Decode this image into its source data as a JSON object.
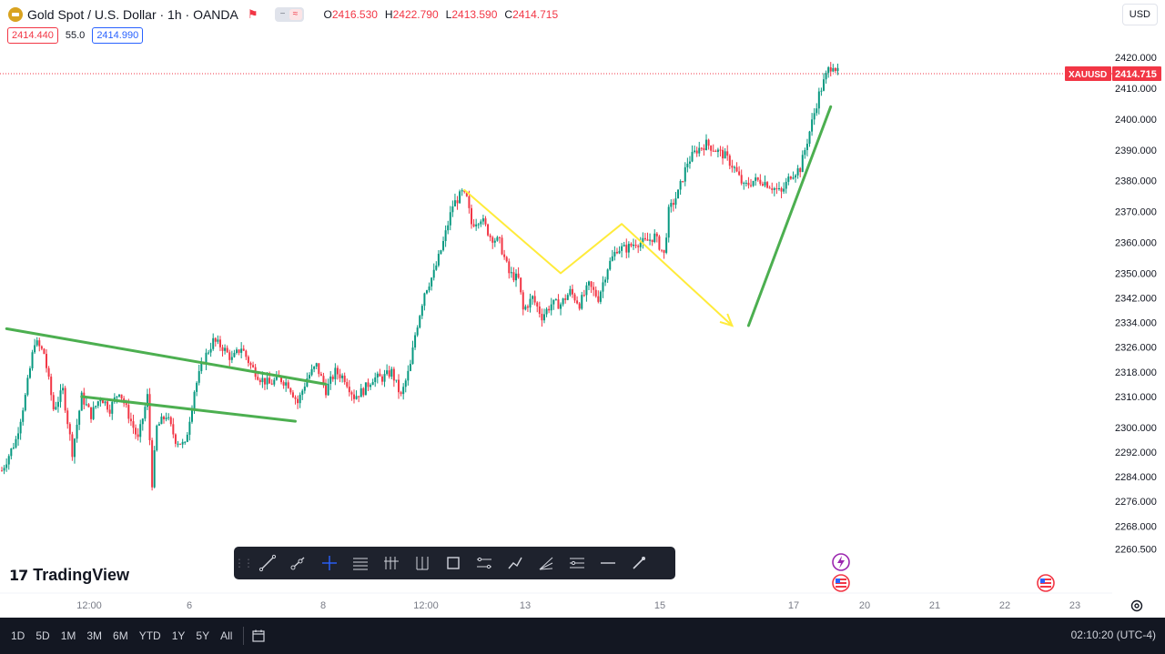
{
  "header": {
    "title": "Gold Spot / U.S. Dollar · 1h · OANDA",
    "ohlc": {
      "o_label": "O",
      "o": "2416.530",
      "h_label": "H",
      "h": "2422.790",
      "l_label": "L",
      "l": "2413.590",
      "c_label": "C",
      "c": "2414.715"
    }
  },
  "quote": {
    "sell": "2414.440",
    "spread": "55.0",
    "buy": "2414.990"
  },
  "currency_button": "USD",
  "price_axis": {
    "ticks": [
      "2420.000",
      "2410.000",
      "2400.000",
      "2390.000",
      "2380.000",
      "2370.000",
      "2360.000",
      "2350.000",
      "2342.000",
      "2334.000",
      "2326.000",
      "2318.000",
      "2310.000",
      "2300.000",
      "2292.000",
      "2284.000",
      "2276.000",
      "2268.000",
      "2260.500"
    ],
    "symbol_label": "XAUUSD",
    "last_price": "2414.715"
  },
  "time_axis": {
    "ticks": [
      "12:00",
      "6",
      "8",
      "12:00",
      "13",
      "15",
      "17",
      "20",
      "21",
      "22",
      "23"
    ]
  },
  "logo": "TradingView",
  "range_buttons": [
    "1D",
    "5D",
    "1M",
    "3M",
    "6M",
    "YTD",
    "1Y",
    "5Y",
    "All"
  ],
  "clock": "02:10:20 (UTC-4)",
  "colors": {
    "up": "#089981",
    "down": "#f23645",
    "green_line": "#4caf50",
    "yellow_line": "#ffeb3b",
    "last_price": "#f23645",
    "toolbar_bg": "#1e222d"
  },
  "toolbar_icons": [
    "trend-line-icon",
    "ray-icon",
    "crosshair-icon",
    "horizontal-lines-icon",
    "fib-levels-icon",
    "pitchfork-icon",
    "rectangle-icon",
    "parallel-channel-icon",
    "path-icon",
    "fib-fan-icon",
    "regression-icon",
    "horizontal-line-icon",
    "brush-icon"
  ],
  "chart_data": {
    "type": "candlestick",
    "symbol": "XAUUSD",
    "interval": "1h",
    "ylim": [
      2256,
      2428
    ],
    "last": 2414.715,
    "path_anchors": [
      [
        0,
        2286
      ],
      [
        6,
        2296
      ],
      [
        10,
        2310
      ],
      [
        14,
        2328
      ],
      [
        18,
        2324
      ],
      [
        22,
        2306
      ],
      [
        26,
        2312
      ],
      [
        30,
        2292
      ],
      [
        34,
        2310
      ],
      [
        38,
        2304
      ],
      [
        42,
        2310
      ],
      [
        46,
        2306
      ],
      [
        50,
        2312
      ],
      [
        54,
        2304
      ],
      [
        58,
        2296
      ],
      [
        62,
        2310
      ],
      [
        64,
        2282
      ],
      [
        66,
        2300
      ],
      [
        70,
        2304
      ],
      [
        74,
        2296
      ],
      [
        78,
        2294
      ],
      [
        82,
        2312
      ],
      [
        86,
        2322
      ],
      [
        90,
        2328
      ],
      [
        94,
        2326
      ],
      [
        98,
        2322
      ],
      [
        102,
        2326
      ],
      [
        106,
        2320
      ],
      [
        110,
        2316
      ],
      [
        114,
        2314
      ],
      [
        118,
        2316
      ],
      [
        122,
        2314
      ],
      [
        126,
        2308
      ],
      [
        130,
        2316
      ],
      [
        134,
        2320
      ],
      [
        138,
        2312
      ],
      [
        142,
        2318
      ],
      [
        146,
        2316
      ],
      [
        150,
        2310
      ],
      [
        154,
        2312
      ],
      [
        158,
        2316
      ],
      [
        162,
        2316
      ],
      [
        166,
        2318
      ],
      [
        170,
        2310
      ],
      [
        174,
        2320
      ],
      [
        176,
        2330
      ],
      [
        180,
        2344
      ],
      [
        184,
        2350
      ],
      [
        188,
        2360
      ],
      [
        192,
        2372
      ],
      [
        196,
        2376
      ],
      [
        198,
        2374
      ],
      [
        200,
        2366
      ],
      [
        204,
        2368
      ],
      [
        208,
        2362
      ],
      [
        212,
        2360
      ],
      [
        216,
        2350
      ],
      [
        220,
        2348
      ],
      [
        222,
        2338
      ],
      [
        226,
        2342
      ],
      [
        230,
        2336
      ],
      [
        234,
        2340
      ],
      [
        238,
        2340
      ],
      [
        242,
        2344
      ],
      [
        246,
        2340
      ],
      [
        250,
        2346
      ],
      [
        254,
        2342
      ],
      [
        258,
        2352
      ],
      [
        262,
        2358
      ],
      [
        266,
        2358
      ],
      [
        270,
        2360
      ],
      [
        274,
        2360
      ],
      [
        278,
        2362
      ],
      [
        282,
        2356
      ],
      [
        284,
        2370
      ],
      [
        288,
        2376
      ],
      [
        292,
        2386
      ],
      [
        296,
        2390
      ],
      [
        300,
        2392
      ],
      [
        304,
        2390
      ],
      [
        308,
        2388
      ],
      [
        312,
        2384
      ],
      [
        316,
        2378
      ],
      [
        320,
        2380
      ],
      [
        324,
        2380
      ],
      [
        328,
        2378
      ],
      [
        332,
        2376
      ],
      [
        336,
        2382
      ],
      [
        340,
        2384
      ],
      [
        344,
        2396
      ],
      [
        348,
        2408
      ],
      [
        352,
        2416
      ],
      [
        354,
        2418
      ],
      [
        356,
        2415
      ]
    ],
    "drawings": {
      "wedge_upper": [
        [
          2,
          2332
        ],
        [
          138,
          2314
        ]
      ],
      "wedge_lower": [
        [
          34,
          2310
        ],
        [
          125,
          2302
        ]
      ],
      "yellow_zigzag": [
        [
          197,
          2377
        ],
        [
          238,
          2350
        ],
        [
          264,
          2366
        ],
        [
          311,
          2333
        ]
      ],
      "green_projection": [
        [
          318,
          2333
        ],
        [
          353,
          2404
        ]
      ]
    },
    "events": {
      "lightning_time": 17.6,
      "flag_time_1": 17.6,
      "flag_time_2": 22.5
    }
  }
}
